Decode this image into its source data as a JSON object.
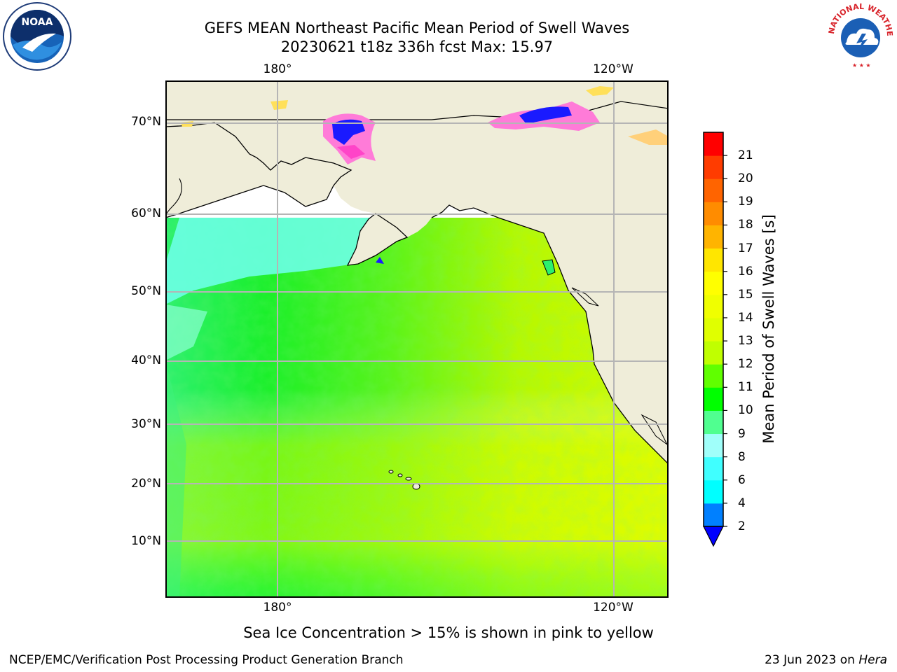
{
  "title": {
    "line1": "GEFS MEAN Northeast Pacific Mean Period of Swell Waves",
    "line2": "20230621 t18z 336h fcst   Max: 15.97"
  },
  "map": {
    "lat_labels": [
      "70°N",
      "60°N",
      "50°N",
      "40°N",
      "30°N",
      "20°N",
      "10°N"
    ],
    "lon_labels": [
      "180°",
      "120°W"
    ],
    "colors": {
      "land": "#efedd9",
      "coast": "#000000",
      "grid": "#b5b5b5",
      "ice_pink": "#ff7bd8",
      "ice_blue": "#1a1aff",
      "ice_yellow": "#ffe05a"
    }
  },
  "colorbar": {
    "label": "Mean Period of Swell Waves [s]",
    "ticks": [
      "2",
      "4",
      "6",
      "8",
      "9",
      "10",
      "11",
      "12",
      "13",
      "14",
      "15",
      "16",
      "17",
      "18",
      "19",
      "20",
      "21"
    ],
    "colors": [
      "#0080ff",
      "#00ffff",
      "#40ffff",
      "#a0fffa",
      "#50ff90",
      "#00ff00",
      "#60ff00",
      "#c0ff00",
      "#e0ff00",
      "#f0ff00",
      "#ffff00",
      "#ffe600",
      "#ffb400",
      "#ff8c00",
      "#ff6400",
      "#ff3c00",
      "#ff0000"
    ],
    "extend_color": "#0000ff"
  },
  "footnote": "Sea Ice Concentration > 15% is shown in pink to yellow",
  "credit_left": "NCEP/EMC/Verification Post Processing Product Generation Branch",
  "credit_right_prefix": "23 Jun 2023 on ",
  "credit_right_machine": "Hera",
  "logos": {
    "noaa_text": "NOAA",
    "nws_text": "NATIONAL WEATHER SERVICE"
  }
}
